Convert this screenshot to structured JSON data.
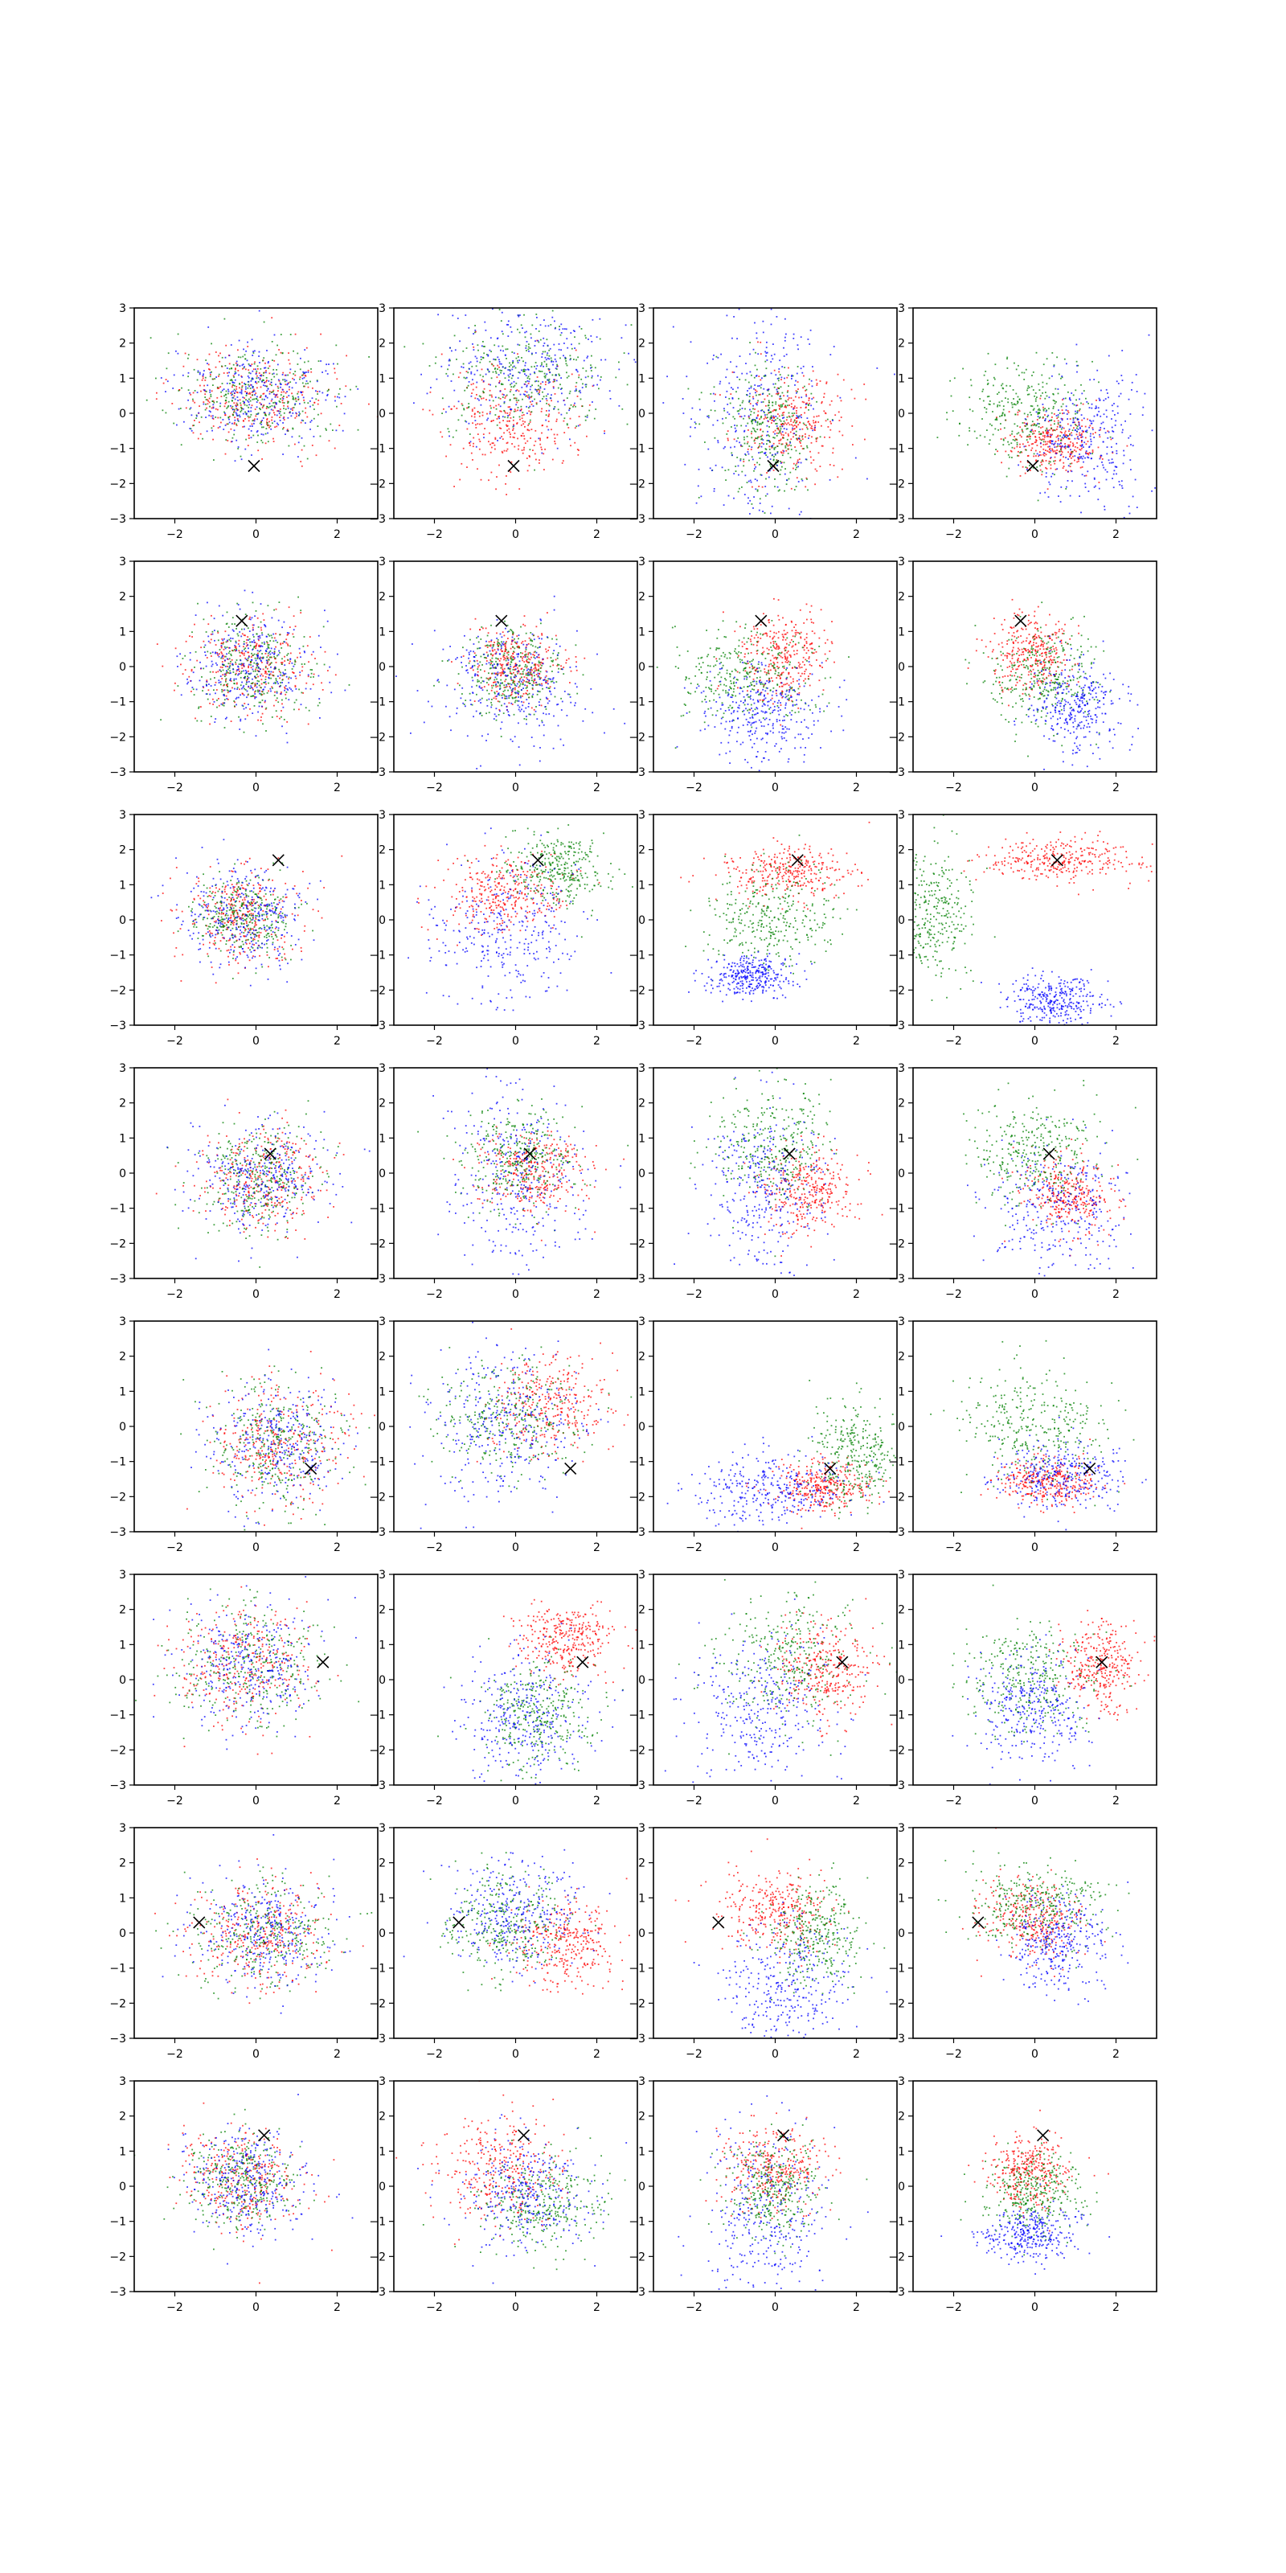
{
  "colors": {
    "red": "#ff0000",
    "green": "#008000",
    "blue": "#0000ff",
    "marker": "#000000"
  },
  "chart_data": {
    "type": "scatter",
    "layout": {
      "rows": 8,
      "cols": 4
    },
    "xlim": [
      -3,
      3
    ],
    "ylim": [
      -3,
      3
    ],
    "xticks": [
      "−2",
      "0",
      "2"
    ],
    "yticks": [
      "−3",
      "−2",
      "−1",
      "0",
      "1",
      "2",
      "3"
    ],
    "xtick_values": [
      -2,
      0,
      2
    ],
    "ytick_values": [
      -3,
      -2,
      -1,
      0,
      1,
      2,
      3
    ],
    "grid": false,
    "points_per_series": 320,
    "row_markers": [
      [
        -0.05,
        -1.5
      ],
      [
        -0.35,
        1.3
      ],
      [
        0.55,
        1.7
      ],
      [
        0.35,
        0.55
      ],
      [
        1.35,
        -1.2
      ],
      [
        1.65,
        0.5
      ],
      [
        -1.4,
        0.3
      ],
      [
        0.2,
        1.45
      ]
    ],
    "panels": [
      [
        {
          "c": "red",
          "m": [
            0,
            0.5
          ],
          "s": [
            1,
            0.75
          ]
        },
        {
          "c": "green",
          "m": [
            0,
            0.5
          ],
          "s": [
            1,
            0.75
          ]
        },
        {
          "c": "blue",
          "m": [
            0,
            0.5
          ],
          "s": [
            1,
            0.75
          ]
        }
      ],
      [
        {
          "c": "red",
          "m": [
            0,
            -0.3
          ],
          "s": [
            0.85,
            0.8
          ]
        },
        {
          "c": "green",
          "m": [
            0.2,
            1.1
          ],
          "s": [
            1,
            0.8
          ]
        },
        {
          "c": "blue",
          "m": [
            0.3,
            1.3
          ],
          "s": [
            1.1,
            0.9
          ]
        }
      ],
      [
        {
          "c": "red",
          "m": [
            0.4,
            -0.3
          ],
          "s": [
            0.7,
            0.7
          ]
        },
        {
          "c": "green",
          "m": [
            -0.2,
            -0.5
          ],
          "s": [
            0.6,
            0.9
          ]
        },
        {
          "c": "blue",
          "m": [
            -0.4,
            0
          ],
          "s": [
            0.9,
            1.6
          ]
        }
      ],
      [
        {
          "c": "red",
          "m": [
            0.5,
            -0.8
          ],
          "s": [
            0.6,
            0.45
          ]
        },
        {
          "c": "green",
          "m": [
            -0.2,
            0
          ],
          "s": [
            0.8,
            0.8
          ]
        },
        {
          "c": "blue",
          "m": [
            1.3,
            -0.7
          ],
          "s": [
            0.7,
            0.9
          ]
        }
      ],
      [
        {
          "c": "red",
          "m": [
            -0.1,
            0
          ],
          "s": [
            0.75,
            0.75
          ]
        },
        {
          "c": "green",
          "m": [
            -0.1,
            0
          ],
          "s": [
            0.75,
            0.75
          ]
        },
        {
          "c": "blue",
          "m": [
            -0.1,
            0
          ],
          "s": [
            0.75,
            0.75
          ]
        }
      ],
      [
        {
          "c": "red",
          "m": [
            0,
            0.1
          ],
          "s": [
            0.55,
            0.55
          ]
        },
        {
          "c": "green",
          "m": [
            -0.1,
            -0.2
          ],
          "s": [
            0.65,
            0.6
          ]
        },
        {
          "c": "blue",
          "m": [
            -0.1,
            -0.4
          ],
          "s": [
            0.9,
            0.9
          ]
        }
      ],
      [
        {
          "c": "red",
          "m": [
            0.2,
            0.3
          ],
          "s": [
            0.55,
            0.6
          ]
        },
        {
          "c": "green",
          "m": [
            -0.7,
            -0.3
          ],
          "s": [
            0.9,
            0.7
          ]
        },
        {
          "c": "blue",
          "m": [
            -0.3,
            -1.3
          ],
          "s": [
            0.8,
            0.7
          ]
        }
      ],
      [
        {
          "c": "red",
          "m": [
            -0.1,
            0.3
          ],
          "s": [
            0.5,
            0.6
          ]
        },
        {
          "c": "green",
          "m": [
            0.2,
            -0.3
          ],
          "s": [
            0.7,
            0.7
          ]
        },
        {
          "c": "blue",
          "m": [
            1,
            -1.2
          ],
          "s": [
            0.6,
            0.6
          ]
        }
      ],
      [
        {
          "c": "red",
          "m": [
            -0.3,
            0.1
          ],
          "s": [
            0.7,
            0.65
          ]
        },
        {
          "c": "green",
          "m": [
            -0.3,
            0.1
          ],
          "s": [
            0.6,
            0.6
          ]
        },
        {
          "c": "blue",
          "m": [
            -0.3,
            0.1
          ],
          "s": [
            0.7,
            0.75
          ]
        }
      ],
      [
        {
          "c": "red",
          "m": [
            -0.3,
            0.8
          ],
          "s": [
            0.75,
            0.55
          ]
        },
        {
          "c": "green",
          "m": [
            1,
            1.5
          ],
          "s": [
            0.6,
            0.5
          ]
        },
        {
          "c": "blue",
          "m": [
            -0.2,
            -0.3
          ],
          "s": [
            0.9,
            1.1
          ]
        }
      ],
      [
        {
          "c": "red",
          "m": [
            0.3,
            1.4
          ],
          "s": [
            0.8,
            0.35
          ]
        },
        {
          "c": "green",
          "m": [
            -0.1,
            0
          ],
          "s": [
            0.8,
            0.7
          ]
        },
        {
          "c": "blue",
          "m": [
            -0.6,
            -1.6
          ],
          "s": [
            0.5,
            0.3
          ]
        }
      ],
      [
        {
          "c": "red",
          "m": [
            0.6,
            1.7
          ],
          "s": [
            0.9,
            0.3
          ]
        },
        {
          "c": "green",
          "m": [
            -2.5,
            0.2
          ],
          "s": [
            0.5,
            0.9
          ]
        },
        {
          "c": "blue",
          "m": [
            0.5,
            -2.3
          ],
          "s": [
            0.6,
            0.35
          ]
        }
      ],
      [
        {
          "c": "red",
          "m": [
            0.1,
            -0.1
          ],
          "s": [
            0.8,
            0.75
          ]
        },
        {
          "c": "green",
          "m": [
            0.1,
            -0.1
          ],
          "s": [
            0.8,
            0.75
          ]
        },
        {
          "c": "blue",
          "m": [
            0.1,
            -0.1
          ],
          "s": [
            0.85,
            0.8
          ]
        }
      ],
      [
        {
          "c": "red",
          "m": [
            0.5,
            0
          ],
          "s": [
            0.7,
            0.6
          ]
        },
        {
          "c": "green",
          "m": [
            0.1,
            0.4
          ],
          "s": [
            0.7,
            0.7
          ]
        },
        {
          "c": "blue",
          "m": [
            0,
            0
          ],
          "s": [
            0.8,
            1.4
          ]
        }
      ],
      [
        {
          "c": "red",
          "m": [
            0.8,
            -0.5
          ],
          "s": [
            0.6,
            0.6
          ]
        },
        {
          "c": "green",
          "m": [
            0,
            0.8
          ],
          "s": [
            0.7,
            0.8
          ]
        },
        {
          "c": "blue",
          "m": [
            -0.3,
            -0.5
          ],
          "s": [
            0.8,
            1.2
          ]
        }
      ],
      [
        {
          "c": "red",
          "m": [
            0.8,
            -0.7
          ],
          "s": [
            0.55,
            0.55
          ]
        },
        {
          "c": "green",
          "m": [
            0,
            0.6
          ],
          "s": [
            0.75,
            0.7
          ]
        },
        {
          "c": "blue",
          "m": [
            0.6,
            -1.1
          ],
          "s": [
            0.8,
            1
          ]
        }
      ],
      [
        {
          "c": "red",
          "m": [
            0.5,
            -0.5
          ],
          "s": [
            0.8,
            0.85
          ]
        },
        {
          "c": "green",
          "m": [
            0.5,
            -0.5
          ],
          "s": [
            0.8,
            0.85
          ]
        },
        {
          "c": "blue",
          "m": [
            0.5,
            -0.5
          ],
          "s": [
            0.85,
            0.9
          ]
        }
      ],
      [
        {
          "c": "red",
          "m": [
            0.9,
            0.6
          ],
          "s": [
            0.7,
            0.7
          ]
        },
        {
          "c": "green",
          "m": [
            -0.2,
            0.2
          ],
          "s": [
            0.9,
            0.8
          ]
        },
        {
          "c": "blue",
          "m": [
            -0.3,
            0
          ],
          "s": [
            1,
            1.1
          ]
        }
      ],
      [
        {
          "c": "red",
          "m": [
            1.2,
            -1.7
          ],
          "s": [
            0.6,
            0.35
          ]
        },
        {
          "c": "green",
          "m": [
            2,
            -0.8
          ],
          "s": [
            0.6,
            0.8
          ]
        },
        {
          "c": "blue",
          "m": [
            -0.1,
            -1.8
          ],
          "s": [
            0.9,
            0.5
          ]
        }
      ],
      [
        {
          "c": "red",
          "m": [
            0.3,
            -1.6
          ],
          "s": [
            0.6,
            0.35
          ]
        },
        {
          "c": "green",
          "m": [
            0,
            0.1
          ],
          "s": [
            0.9,
            0.75
          ]
        },
        {
          "c": "blue",
          "m": [
            0.6,
            -1.4
          ],
          "s": [
            0.8,
            0.5
          ]
        }
      ],
      [
        {
          "c": "red",
          "m": [
            -0.2,
            0.4
          ],
          "s": [
            0.9,
            0.85
          ]
        },
        {
          "c": "green",
          "m": [
            -0.2,
            0.4
          ],
          "s": [
            0.9,
            0.85
          ]
        },
        {
          "c": "blue",
          "m": [
            -0.2,
            0.4
          ],
          "s": [
            0.9,
            0.9
          ]
        }
      ],
      [
        {
          "c": "red",
          "m": [
            1.3,
            1.2
          ],
          "s": [
            0.6,
            0.5
          ]
        },
        {
          "c": "green",
          "m": [
            0.6,
            -1
          ],
          "s": [
            0.7,
            0.8
          ]
        },
        {
          "c": "blue",
          "m": [
            0.3,
            -1
          ],
          "s": [
            0.8,
            0.9
          ]
        }
      ],
      [
        {
          "c": "red",
          "m": [
            1.2,
            0.3
          ],
          "s": [
            0.6,
            0.7
          ]
        },
        {
          "c": "green",
          "m": [
            0.3,
            0.6
          ],
          "s": [
            0.8,
            0.9
          ]
        },
        {
          "c": "blue",
          "m": [
            -0.3,
            -0.9
          ],
          "s": [
            0.9,
            1.1
          ]
        }
      ],
      [
        {
          "c": "red",
          "m": [
            1.6,
            0.4
          ],
          "s": [
            0.45,
            0.6
          ]
        },
        {
          "c": "green",
          "m": [
            -0.1,
            0
          ],
          "s": [
            0.8,
            0.8
          ]
        },
        {
          "c": "blue",
          "m": [
            0,
            -0.8
          ],
          "s": [
            0.7,
            0.8
          ]
        }
      ],
      [
        {
          "c": "red",
          "m": [
            0.2,
            0
          ],
          "s": [
            0.85,
            0.75
          ]
        },
        {
          "c": "green",
          "m": [
            0.2,
            0
          ],
          "s": [
            0.85,
            0.75
          ]
        },
        {
          "c": "blue",
          "m": [
            0.2,
            0
          ],
          "s": [
            0.85,
            0.8
          ]
        }
      ],
      [
        {
          "c": "red",
          "m": [
            1.2,
            -0.3
          ],
          "s": [
            0.7,
            0.6
          ]
        },
        {
          "c": "green",
          "m": [
            -0.3,
            0.3
          ],
          "s": [
            0.7,
            0.7
          ]
        },
        {
          "c": "blue",
          "m": [
            0,
            0.5
          ],
          "s": [
            0.8,
            0.8
          ]
        }
      ],
      [
        {
          "c": "red",
          "m": [
            0,
            0.6
          ],
          "s": [
            0.7,
            0.6
          ]
        },
        {
          "c": "green",
          "m": [
            1,
            -0.1
          ],
          "s": [
            0.6,
            0.7
          ]
        },
        {
          "c": "blue",
          "m": [
            0.2,
            -1.5
          ],
          "s": [
            0.8,
            1
          ]
        }
      ],
      [
        {
          "c": "red",
          "m": [
            -0.1,
            0.4
          ],
          "s": [
            0.6,
            0.6
          ]
        },
        {
          "c": "green",
          "m": [
            0,
            0.8
          ],
          "s": [
            0.8,
            0.6
          ]
        },
        {
          "c": "blue",
          "m": [
            0.6,
            -0.3
          ],
          "s": [
            0.6,
            0.7
          ]
        }
      ],
      [
        {
          "c": "red",
          "m": [
            -0.3,
            0.2
          ],
          "s": [
            0.7,
            0.7
          ]
        },
        {
          "c": "green",
          "m": [
            -0.3,
            0.2
          ],
          "s": [
            0.7,
            0.7
          ]
        },
        {
          "c": "blue",
          "m": [
            -0.2,
            0.1
          ],
          "s": [
            0.75,
            0.75
          ]
        }
      ],
      [
        {
          "c": "red",
          "m": [
            -0.3,
            0.5
          ],
          "s": [
            0.8,
            0.75
          ]
        },
        {
          "c": "green",
          "m": [
            0.6,
            -0.5
          ],
          "s": [
            0.75,
            0.7
          ]
        },
        {
          "c": "blue",
          "m": [
            0.2,
            -0.3
          ],
          "s": [
            0.8,
            0.8
          ]
        }
      ],
      [
        {
          "c": "red",
          "m": [
            0,
            0.5
          ],
          "s": [
            0.6,
            0.6
          ]
        },
        {
          "c": "green",
          "m": [
            0,
            -0.1
          ],
          "s": [
            0.6,
            0.7
          ]
        },
        {
          "c": "blue",
          "m": [
            -0.3,
            -0.8
          ],
          "s": [
            0.8,
            1.3
          ]
        }
      ],
      [
        {
          "c": "red",
          "m": [
            -0.1,
            0.4
          ],
          "s": [
            0.5,
            0.5
          ]
        },
        {
          "c": "green",
          "m": [
            0,
            -0.2
          ],
          "s": [
            0.6,
            0.6
          ]
        },
        {
          "c": "blue",
          "m": [
            -0.1,
            -1.4
          ],
          "s": [
            0.6,
            0.35
          ]
        }
      ]
    ]
  }
}
